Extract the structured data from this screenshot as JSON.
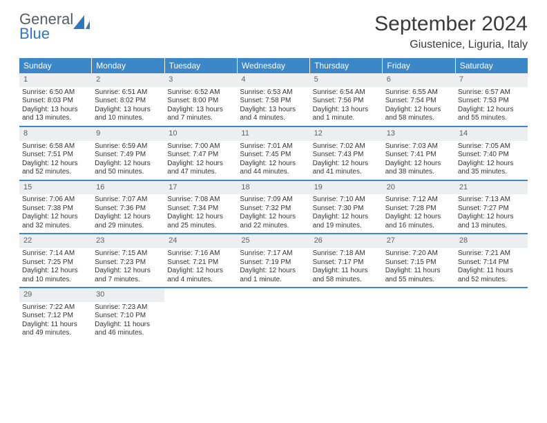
{
  "logo": {
    "top": "General",
    "bottom": "Blue"
  },
  "title": "September 2024",
  "subtitle": "Giustenice, Liguria, Italy",
  "header_bg": "#3c87c7",
  "day_num_bg": "#eceeef",
  "week_border": "#3c87c7",
  "day_names": [
    "Sunday",
    "Monday",
    "Tuesday",
    "Wednesday",
    "Thursday",
    "Friday",
    "Saturday"
  ],
  "weeks": [
    [
      {
        "n": "1",
        "sr": "Sunrise: 6:50 AM",
        "ss": "Sunset: 8:03 PM",
        "d1": "Daylight: 13 hours",
        "d2": "and 13 minutes."
      },
      {
        "n": "2",
        "sr": "Sunrise: 6:51 AM",
        "ss": "Sunset: 8:02 PM",
        "d1": "Daylight: 13 hours",
        "d2": "and 10 minutes."
      },
      {
        "n": "3",
        "sr": "Sunrise: 6:52 AM",
        "ss": "Sunset: 8:00 PM",
        "d1": "Daylight: 13 hours",
        "d2": "and 7 minutes."
      },
      {
        "n": "4",
        "sr": "Sunrise: 6:53 AM",
        "ss": "Sunset: 7:58 PM",
        "d1": "Daylight: 13 hours",
        "d2": "and 4 minutes."
      },
      {
        "n": "5",
        "sr": "Sunrise: 6:54 AM",
        "ss": "Sunset: 7:56 PM",
        "d1": "Daylight: 13 hours",
        "d2": "and 1 minute."
      },
      {
        "n": "6",
        "sr": "Sunrise: 6:55 AM",
        "ss": "Sunset: 7:54 PM",
        "d1": "Daylight: 12 hours",
        "d2": "and 58 minutes."
      },
      {
        "n": "7",
        "sr": "Sunrise: 6:57 AM",
        "ss": "Sunset: 7:53 PM",
        "d1": "Daylight: 12 hours",
        "d2": "and 55 minutes."
      }
    ],
    [
      {
        "n": "8",
        "sr": "Sunrise: 6:58 AM",
        "ss": "Sunset: 7:51 PM",
        "d1": "Daylight: 12 hours",
        "d2": "and 52 minutes."
      },
      {
        "n": "9",
        "sr": "Sunrise: 6:59 AM",
        "ss": "Sunset: 7:49 PM",
        "d1": "Daylight: 12 hours",
        "d2": "and 50 minutes."
      },
      {
        "n": "10",
        "sr": "Sunrise: 7:00 AM",
        "ss": "Sunset: 7:47 PM",
        "d1": "Daylight: 12 hours",
        "d2": "and 47 minutes."
      },
      {
        "n": "11",
        "sr": "Sunrise: 7:01 AM",
        "ss": "Sunset: 7:45 PM",
        "d1": "Daylight: 12 hours",
        "d2": "and 44 minutes."
      },
      {
        "n": "12",
        "sr": "Sunrise: 7:02 AM",
        "ss": "Sunset: 7:43 PM",
        "d1": "Daylight: 12 hours",
        "d2": "and 41 minutes."
      },
      {
        "n": "13",
        "sr": "Sunrise: 7:03 AM",
        "ss": "Sunset: 7:41 PM",
        "d1": "Daylight: 12 hours",
        "d2": "and 38 minutes."
      },
      {
        "n": "14",
        "sr": "Sunrise: 7:05 AM",
        "ss": "Sunset: 7:40 PM",
        "d1": "Daylight: 12 hours",
        "d2": "and 35 minutes."
      }
    ],
    [
      {
        "n": "15",
        "sr": "Sunrise: 7:06 AM",
        "ss": "Sunset: 7:38 PM",
        "d1": "Daylight: 12 hours",
        "d2": "and 32 minutes."
      },
      {
        "n": "16",
        "sr": "Sunrise: 7:07 AM",
        "ss": "Sunset: 7:36 PM",
        "d1": "Daylight: 12 hours",
        "d2": "and 29 minutes."
      },
      {
        "n": "17",
        "sr": "Sunrise: 7:08 AM",
        "ss": "Sunset: 7:34 PM",
        "d1": "Daylight: 12 hours",
        "d2": "and 25 minutes."
      },
      {
        "n": "18",
        "sr": "Sunrise: 7:09 AM",
        "ss": "Sunset: 7:32 PM",
        "d1": "Daylight: 12 hours",
        "d2": "and 22 minutes."
      },
      {
        "n": "19",
        "sr": "Sunrise: 7:10 AM",
        "ss": "Sunset: 7:30 PM",
        "d1": "Daylight: 12 hours",
        "d2": "and 19 minutes."
      },
      {
        "n": "20",
        "sr": "Sunrise: 7:12 AM",
        "ss": "Sunset: 7:28 PM",
        "d1": "Daylight: 12 hours",
        "d2": "and 16 minutes."
      },
      {
        "n": "21",
        "sr": "Sunrise: 7:13 AM",
        "ss": "Sunset: 7:27 PM",
        "d1": "Daylight: 12 hours",
        "d2": "and 13 minutes."
      }
    ],
    [
      {
        "n": "22",
        "sr": "Sunrise: 7:14 AM",
        "ss": "Sunset: 7:25 PM",
        "d1": "Daylight: 12 hours",
        "d2": "and 10 minutes."
      },
      {
        "n": "23",
        "sr": "Sunrise: 7:15 AM",
        "ss": "Sunset: 7:23 PM",
        "d1": "Daylight: 12 hours",
        "d2": "and 7 minutes."
      },
      {
        "n": "24",
        "sr": "Sunrise: 7:16 AM",
        "ss": "Sunset: 7:21 PM",
        "d1": "Daylight: 12 hours",
        "d2": "and 4 minutes."
      },
      {
        "n": "25",
        "sr": "Sunrise: 7:17 AM",
        "ss": "Sunset: 7:19 PM",
        "d1": "Daylight: 12 hours",
        "d2": "and 1 minute."
      },
      {
        "n": "26",
        "sr": "Sunrise: 7:18 AM",
        "ss": "Sunset: 7:17 PM",
        "d1": "Daylight: 11 hours",
        "d2": "and 58 minutes."
      },
      {
        "n": "27",
        "sr": "Sunrise: 7:20 AM",
        "ss": "Sunset: 7:15 PM",
        "d1": "Daylight: 11 hours",
        "d2": "and 55 minutes."
      },
      {
        "n": "28",
        "sr": "Sunrise: 7:21 AM",
        "ss": "Sunset: 7:14 PM",
        "d1": "Daylight: 11 hours",
        "d2": "and 52 minutes."
      }
    ],
    [
      {
        "n": "29",
        "sr": "Sunrise: 7:22 AM",
        "ss": "Sunset: 7:12 PM",
        "d1": "Daylight: 11 hours",
        "d2": "and 49 minutes."
      },
      {
        "n": "30",
        "sr": "Sunrise: 7:23 AM",
        "ss": "Sunset: 7:10 PM",
        "d1": "Daylight: 11 hours",
        "d2": "and 46 minutes."
      },
      null,
      null,
      null,
      null,
      null
    ]
  ]
}
